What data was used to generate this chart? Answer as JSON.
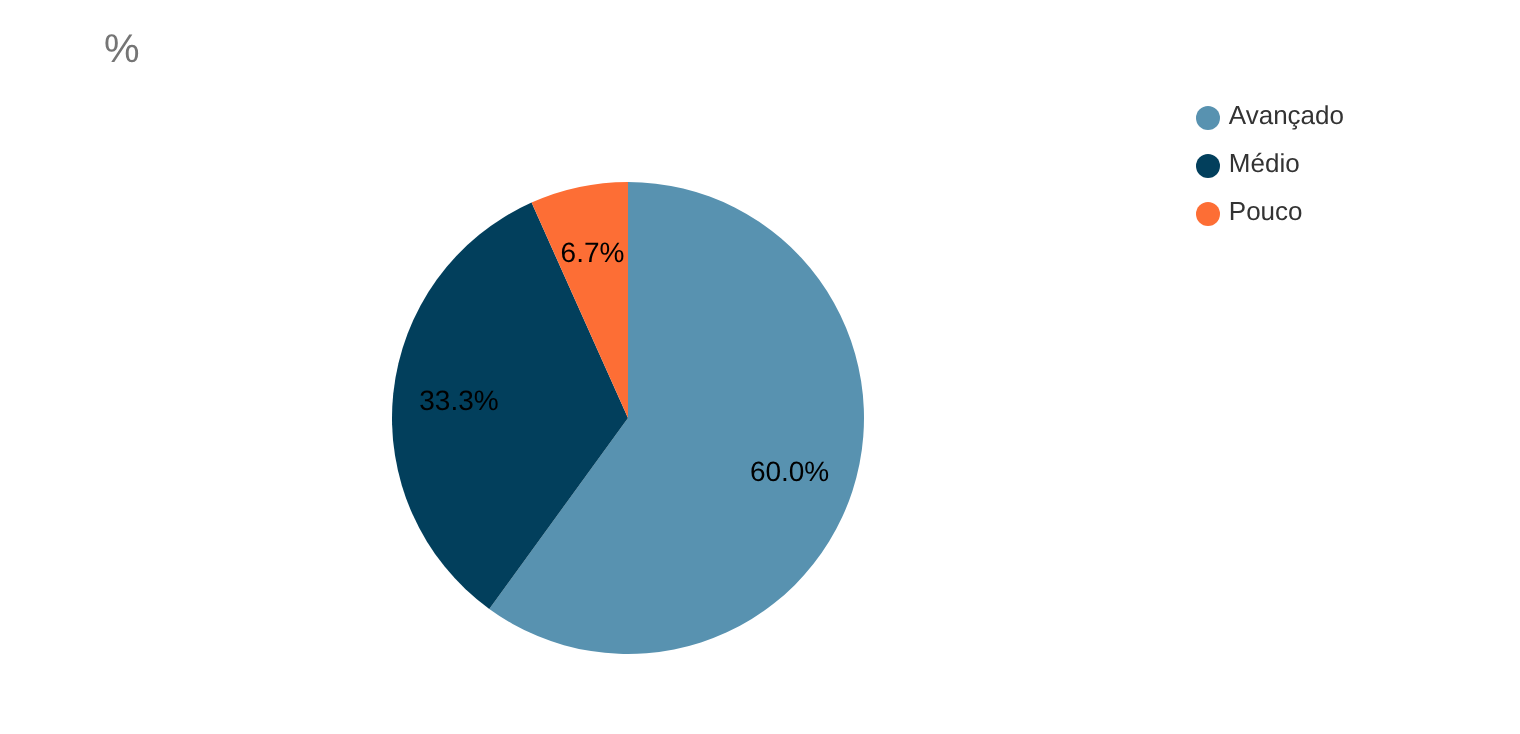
{
  "chart_data": {
    "type": "pie",
    "title": "%",
    "categories": [
      "Avançado",
      "Médio",
      "Pouco"
    ],
    "values": [
      60.0,
      33.3,
      6.7
    ],
    "value_labels": [
      "60.0%",
      "33.3%",
      "6.7%"
    ],
    "colors": [
      "#5892b0",
      "#023f5c",
      "#fd6e35"
    ],
    "legend": "top right"
  }
}
